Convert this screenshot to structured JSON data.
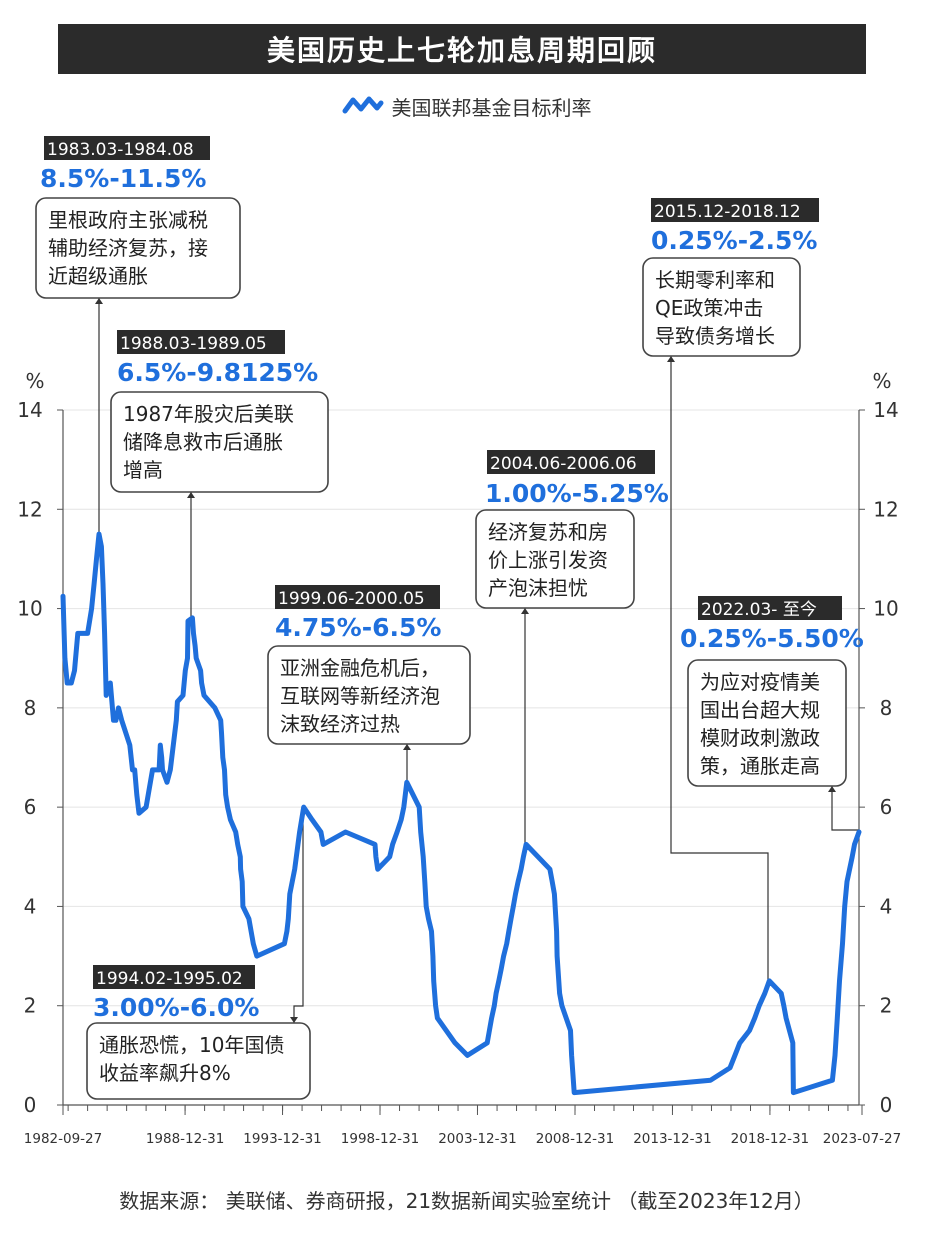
{
  "title": "美国历史上七轮加息周期回顾",
  "legend": {
    "label": "美国联邦基金目标利率"
  },
  "source": "数据来源： 美联储、券商研报，21数据新闻实验室统计 （截至2023年12月）",
  "colors": {
    "line": "#1f6fdc",
    "title_bg": "#2b2b2b",
    "grid": "#e4e4e4"
  },
  "chart_data": {
    "type": "line",
    "ylabel": "%",
    "ylim": [
      0,
      14
    ],
    "yticks": [
      0,
      2,
      4,
      6,
      8,
      10,
      12,
      14
    ],
    "xlim": [
      "1982-09-27",
      "2023-07-27"
    ],
    "xtick_labels": [
      "1982-09-27",
      "1988-12-31",
      "1993-12-31",
      "1998-12-31",
      "2003-12-31",
      "2008-12-31",
      "2013-12-31",
      "2018-12-31",
      "2023-07-27"
    ],
    "grid": true,
    "series": [
      {
        "name": "美国联邦基金目标利率",
        "points": [
          [
            "1982-09-27",
            10.25
          ],
          [
            "1982-11-01",
            9.0
          ],
          [
            "1982-12-15",
            8.5
          ],
          [
            "1983-03-01",
            8.5
          ],
          [
            "1983-05-01",
            8.75
          ],
          [
            "1983-07-01",
            9.5
          ],
          [
            "1983-08-15",
            9.5
          ],
          [
            "1983-10-01",
            9.5
          ],
          [
            "1984-01-01",
            9.5
          ],
          [
            "1984-03-15",
            10.0
          ],
          [
            "1984-05-01",
            10.5
          ],
          [
            "1984-06-15",
            11.0
          ],
          [
            "1984-08-01",
            11.5
          ],
          [
            "1984-09-15",
            11.25
          ],
          [
            "1984-10-15",
            10.5
          ],
          [
            "1984-11-15",
            9.5
          ],
          [
            "1984-12-15",
            8.25
          ],
          [
            "1985-03-01",
            8.5
          ],
          [
            "1985-05-01",
            7.75
          ],
          [
            "1985-06-15",
            7.75
          ],
          [
            "1985-08-01",
            8.0
          ],
          [
            "1985-10-01",
            7.75
          ],
          [
            "1986-03-01",
            7.25
          ],
          [
            "1986-04-21",
            6.75
          ],
          [
            "1986-06-01",
            6.75
          ],
          [
            "1986-07-11",
            6.25
          ],
          [
            "1986-08-21",
            5.875
          ],
          [
            "1987-01-01",
            6.0
          ],
          [
            "1987-05-01",
            6.75
          ],
          [
            "1987-09-01",
            6.75
          ],
          [
            "1987-09-24",
            7.25
          ],
          [
            "1987-10-20",
            7.0
          ],
          [
            "1987-11-04",
            6.75
          ],
          [
            "1988-01-28",
            6.5
          ],
          [
            "1988-03-29",
            6.75
          ],
          [
            "1988-05-25",
            7.25
          ],
          [
            "1988-07-19",
            7.75
          ],
          [
            "1988-08-09",
            8.125
          ],
          [
            "1988-11-22",
            8.25
          ],
          [
            "1989-01-05",
            8.75
          ],
          [
            "1989-02-14",
            9.0
          ],
          [
            "1989-02-24",
            9.75
          ],
          [
            "1989-05-17",
            9.8125
          ],
          [
            "1989-06-06",
            9.5
          ],
          [
            "1989-07-07",
            9.25
          ],
          [
            "1989-07-27",
            9.0
          ],
          [
            "1989-10-18",
            8.75
          ],
          [
            "1989-11-06",
            8.5
          ],
          [
            "1989-12-20",
            8.25
          ],
          [
            "1990-07-13",
            8.0
          ],
          [
            "1990-10-29",
            7.75
          ],
          [
            "1990-11-13",
            7.5
          ],
          [
            "1990-12-07",
            7.0
          ],
          [
            "1991-01-09",
            6.75
          ],
          [
            "1991-02-01",
            6.25
          ],
          [
            "1991-03-08",
            6.0
          ],
          [
            "1991-04-30",
            5.75
          ],
          [
            "1991-08-06",
            5.5
          ],
          [
            "1991-09-13",
            5.25
          ],
          [
            "1991-10-31",
            5.0
          ],
          [
            "1991-11-06",
            4.75
          ],
          [
            "1991-12-06",
            4.5
          ],
          [
            "1991-12-20",
            4.0
          ],
          [
            "1992-04-09",
            3.75
          ],
          [
            "1992-07-02",
            3.25
          ],
          [
            "1992-09-04",
            3.0
          ],
          [
            "1994-02-04",
            3.25
          ],
          [
            "1994-03-22",
            3.5
          ],
          [
            "1994-04-18",
            3.75
          ],
          [
            "1994-05-17",
            4.25
          ],
          [
            "1994-08-16",
            4.75
          ],
          [
            "1994-11-15",
            5.5
          ],
          [
            "1995-02-01",
            6.0
          ],
          [
            "1995-07-06",
            5.75
          ],
          [
            "1995-12-19",
            5.5
          ],
          [
            "1996-01-31",
            5.25
          ],
          [
            "1997-03-25",
            5.5
          ],
          [
            "1998-09-29",
            5.25
          ],
          [
            "1998-10-15",
            5.0
          ],
          [
            "1998-11-17",
            4.75
          ],
          [
            "1999-06-30",
            5.0
          ],
          [
            "1999-08-24",
            5.25
          ],
          [
            "1999-11-16",
            5.5
          ],
          [
            "2000-02-02",
            5.75
          ],
          [
            "2000-03-21",
            6.0
          ],
          [
            "2000-05-16",
            6.5
          ],
          [
            "2001-01-03",
            6.0
          ],
          [
            "2001-01-31",
            5.5
          ],
          [
            "2001-03-20",
            5.0
          ],
          [
            "2001-04-18",
            4.5
          ],
          [
            "2001-05-15",
            4.0
          ],
          [
            "2001-06-27",
            3.75
          ],
          [
            "2001-08-21",
            3.5
          ],
          [
            "2001-09-17",
            3.0
          ],
          [
            "2001-10-02",
            2.5
          ],
          [
            "2001-11-06",
            2.0
          ],
          [
            "2001-12-11",
            1.75
          ],
          [
            "2002-11-06",
            1.25
          ],
          [
            "2003-06-25",
            1.0
          ],
          [
            "2004-06-30",
            1.25
          ],
          [
            "2004-08-10",
            1.5
          ],
          [
            "2004-09-21",
            1.75
          ],
          [
            "2004-11-10",
            2.0
          ],
          [
            "2004-12-14",
            2.25
          ],
          [
            "2005-02-02",
            2.5
          ],
          [
            "2005-03-22",
            2.75
          ],
          [
            "2005-05-03",
            3.0
          ],
          [
            "2005-06-30",
            3.25
          ],
          [
            "2005-08-09",
            3.5
          ],
          [
            "2005-09-20",
            3.75
          ],
          [
            "2005-11-01",
            4.0
          ],
          [
            "2005-12-13",
            4.25
          ],
          [
            "2006-01-31",
            4.5
          ],
          [
            "2006-03-28",
            4.75
          ],
          [
            "2006-05-10",
            5.0
          ],
          [
            "2006-06-29",
            5.25
          ],
          [
            "2007-09-18",
            4.75
          ],
          [
            "2007-10-31",
            4.5
          ],
          [
            "2007-12-11",
            4.25
          ],
          [
            "2008-01-22",
            3.5
          ],
          [
            "2008-01-30",
            3.0
          ],
          [
            "2008-03-18",
            2.25
          ],
          [
            "2008-04-30",
            2.0
          ],
          [
            "2008-10-08",
            1.5
          ],
          [
            "2008-10-29",
            1.0
          ],
          [
            "2008-12-16",
            0.25
          ],
          [
            "2015-12-16",
            0.5
          ],
          [
            "2016-12-14",
            0.75
          ],
          [
            "2017-03-15",
            1.0
          ],
          [
            "2017-06-14",
            1.25
          ],
          [
            "2017-12-13",
            1.5
          ],
          [
            "2018-03-21",
            1.75
          ],
          [
            "2018-06-13",
            2.0
          ],
          [
            "2018-09-26",
            2.25
          ],
          [
            "2018-12-19",
            2.5
          ],
          [
            "2019-07-31",
            2.25
          ],
          [
            "2019-09-18",
            2.0
          ],
          [
            "2019-10-30",
            1.75
          ],
          [
            "2020-03-03",
            1.25
          ],
          [
            "2020-03-15",
            0.25
          ],
          [
            "2022-03-16",
            0.5
          ],
          [
            "2022-05-04",
            1.0
          ],
          [
            "2022-06-15",
            1.75
          ],
          [
            "2022-07-27",
            2.5
          ],
          [
            "2022-09-21",
            3.25
          ],
          [
            "2022-11-02",
            4.0
          ],
          [
            "2022-12-14",
            4.5
          ],
          [
            "2023-02-01",
            4.75
          ],
          [
            "2023-03-22",
            5.0
          ],
          [
            "2023-05-03",
            5.25
          ],
          [
            "2023-07-27",
            5.5
          ]
        ]
      }
    ]
  },
  "annotations": [
    {
      "id": "1983",
      "date": "1983.03-1984.08",
      "rate": "8.5%-11.5%",
      "lines": [
        "里根政府主张减税",
        "辅助经济复苏，接",
        "近超级通胀"
      ]
    },
    {
      "id": "1988",
      "date": "1988.03-1989.05",
      "rate": "6.5%-9.8125%",
      "lines": [
        "1987年股灾后美联",
        "储降息救市后通胀",
        "增高"
      ]
    },
    {
      "id": "1994",
      "date": "1994.02-1995.02",
      "rate": "3.00%-6.0%",
      "lines": [
        "通胀恐慌，10年国债",
        "收益率飙升8%"
      ]
    },
    {
      "id": "1999",
      "date": "1999.06-2000.05",
      "rate": "4.75%-6.5%",
      "lines": [
        "亚洲金融危机后，",
        "互联网等新经济泡",
        "沫致经济过热"
      ]
    },
    {
      "id": "2004",
      "date": "2004.06-2006.06",
      "rate": "1.00%-5.25%",
      "lines": [
        "经济复苏和房",
        "价上涨引发资",
        "产泡沫担忧"
      ]
    },
    {
      "id": "2015",
      "date": "2015.12-2018.12",
      "rate": "0.25%-2.5%",
      "lines": [
        "长期零利率和",
        "QE政策冲击",
        "导致债务增长"
      ]
    },
    {
      "id": "2022",
      "date": "2022.03- 至今",
      "rate": "0.25%-5.50%",
      "lines": [
        "为应对疫情美",
        "国出台超大规",
        "模财政刺激政",
        "策，通胀走高"
      ]
    }
  ]
}
